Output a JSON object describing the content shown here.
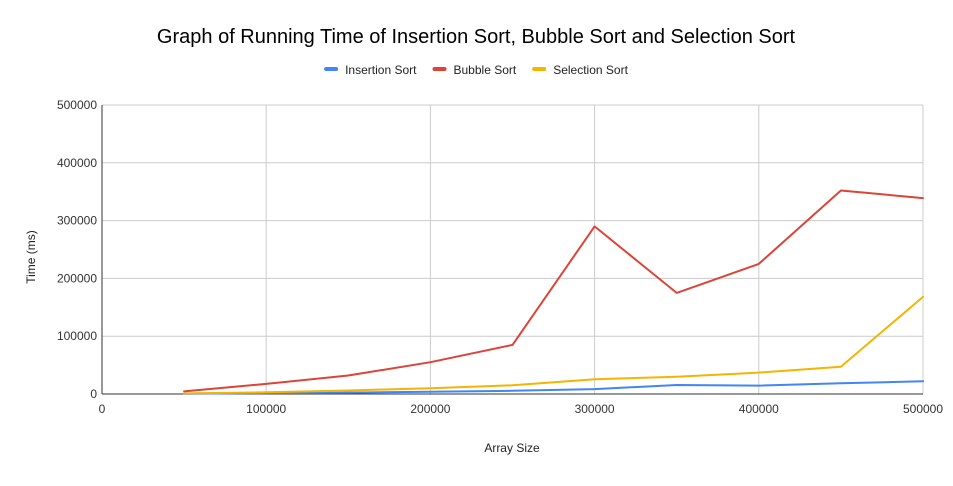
{
  "chart_data": {
    "type": "line",
    "title": "Graph of Running Time of Insertion Sort, Bubble Sort and Selection Sort",
    "xlabel": "Array Size",
    "ylabel": "Time (ms)",
    "xlim": [
      0,
      500000
    ],
    "ylim": [
      0,
      500000
    ],
    "x_ticks": [
      "0",
      "100000",
      "200000",
      "300000",
      "400000",
      "500000"
    ],
    "y_ticks": [
      "0",
      "100000",
      "200000",
      "300000",
      "400000",
      "500000"
    ],
    "x": [
      50000,
      100000,
      150000,
      200000,
      250000,
      300000,
      350000,
      400000,
      450000,
      500000
    ],
    "grid": true,
    "legend_position": "top",
    "series": [
      {
        "name": "Insertion Sort",
        "color": "#4285f4",
        "values": [
          500,
          1500,
          2500,
          4000,
          5500,
          8500,
          15500,
          14500,
          18500,
          22000
        ]
      },
      {
        "name": "Bubble Sort",
        "color": "#db4437",
        "values": [
          4500,
          17500,
          32000,
          55000,
          85000,
          290000,
          175000,
          225000,
          352000,
          339000
        ]
      },
      {
        "name": "Selection Sort",
        "color": "#f4b400",
        "values": [
          1000,
          3000,
          6000,
          10000,
          15000,
          25500,
          30000,
          37000,
          47000,
          168000
        ]
      }
    ]
  }
}
